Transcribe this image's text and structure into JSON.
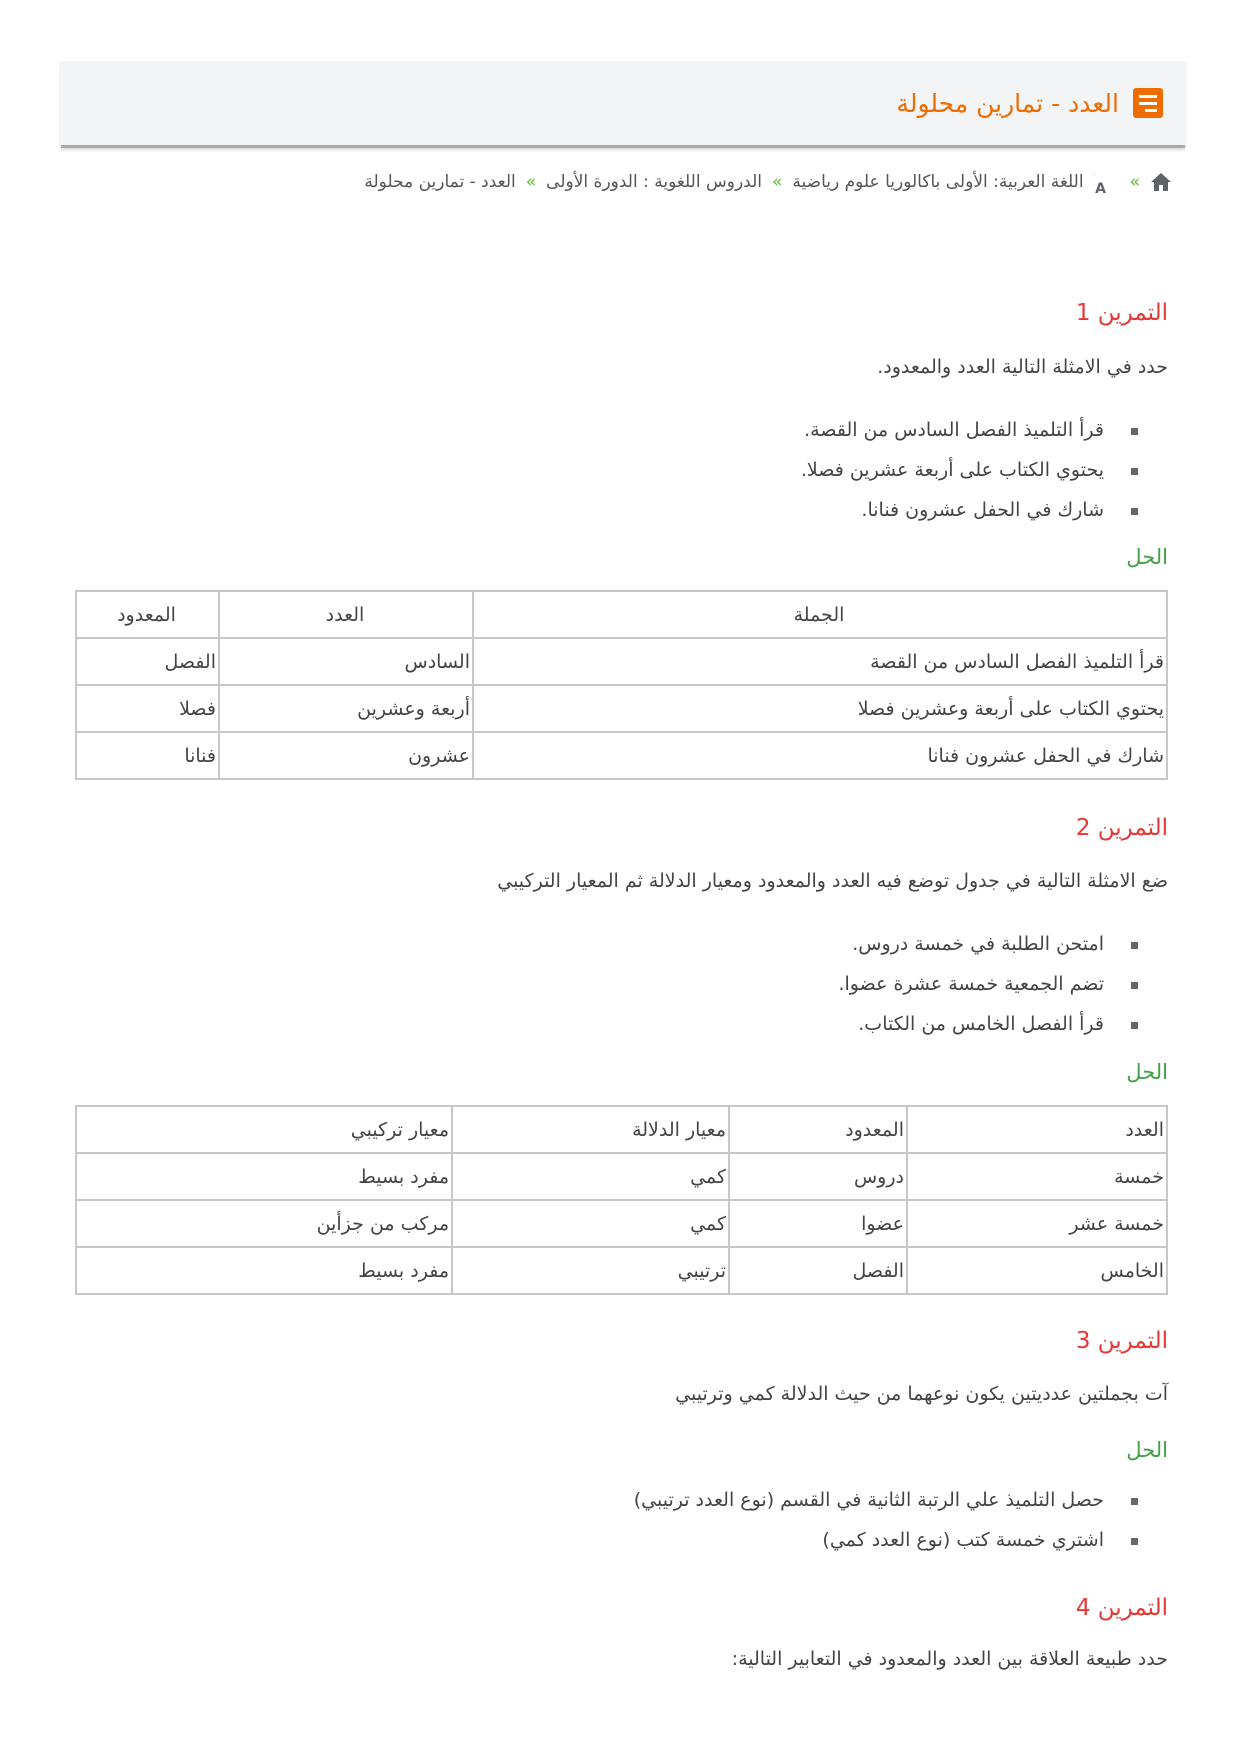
{
  "header": {
    "title": "العدد - تمارين محلولة",
    "icon": "document-icon",
    "accent": "#ef6c00"
  },
  "breadcrumb": {
    "home_icon": "home-icon",
    "translate_icon": "translate-icon",
    "separator": "»",
    "items": [
      "اللغة العربية: الأولى باكالوريا علوم رياضية",
      "الدروس اللغوية : الدورة الأولى",
      "العدد - تمارين محلولة"
    ]
  },
  "solution_label": "الحل",
  "exercises": [
    {
      "title": "التمرين 1",
      "prompt": "حدد في الامثلة التالية العدد والمعدود.",
      "items": [
        "قرأ التلميذ الفصل السادس من القصة.",
        "يحتوي الكتاب على أربعة عشرين فصلا.",
        "شارك في الحفل عشرون فنانا."
      ],
      "table": {
        "headers": [
          "الجملة",
          "العدد",
          "المعدود"
        ],
        "rows": [
          [
            "قرأ التلميذ الفصل السادس من القصة",
            "السادس",
            "الفصل"
          ],
          [
            "يحتوي الكتاب على أربعة وعشرين فصلا",
            "أربعة وعشرين",
            "فصلا"
          ],
          [
            "شارك في الحفل عشرون فنانا",
            "عشرون",
            "فنانا"
          ]
        ]
      }
    },
    {
      "title": "التمرين 2",
      "prompt": "ضع الامثلة التالية في جدول توضع فيه العدد والمعدود ومعيار الدلالة ثم المعيار التركيبي",
      "items": [
        "امتحن الطلبة في خمسة دروس.",
        "تضم الجمعية خمسة عشرة عضوا.",
        "قرأ الفصل الخامس من الكتاب."
      ],
      "table": {
        "headers": [
          "العدد",
          "المعدود",
          "معيار الدلالة",
          "معيار تركيبي"
        ],
        "rows": [
          [
            "خمسة",
            "دروس",
            "كمي",
            "مفرد بسيط"
          ],
          [
            "خمسة عشر",
            "عضوا",
            "كمي",
            "مركب من جزأين"
          ],
          [
            "الخامس",
            "الفصل",
            "ترتيبي",
            "مفرد بسيط"
          ]
        ]
      }
    },
    {
      "title": "التمرين 3",
      "prompt": "آت بجملتين عدديتين يكون نوعهما من حيث الدلالة كمي وترتيبي",
      "items": [
        "حصل التلميذ علي الرتبة الثانية في القسم (نوع العدد ترتيبي)",
        "اشتري خمسة كتب (نوع العدد كمي)"
      ]
    },
    {
      "title": "التمرين 4",
      "prompt": "حدد طبيعة العلاقة بين العدد والمعدود في التعابير التالية:"
    }
  ]
}
